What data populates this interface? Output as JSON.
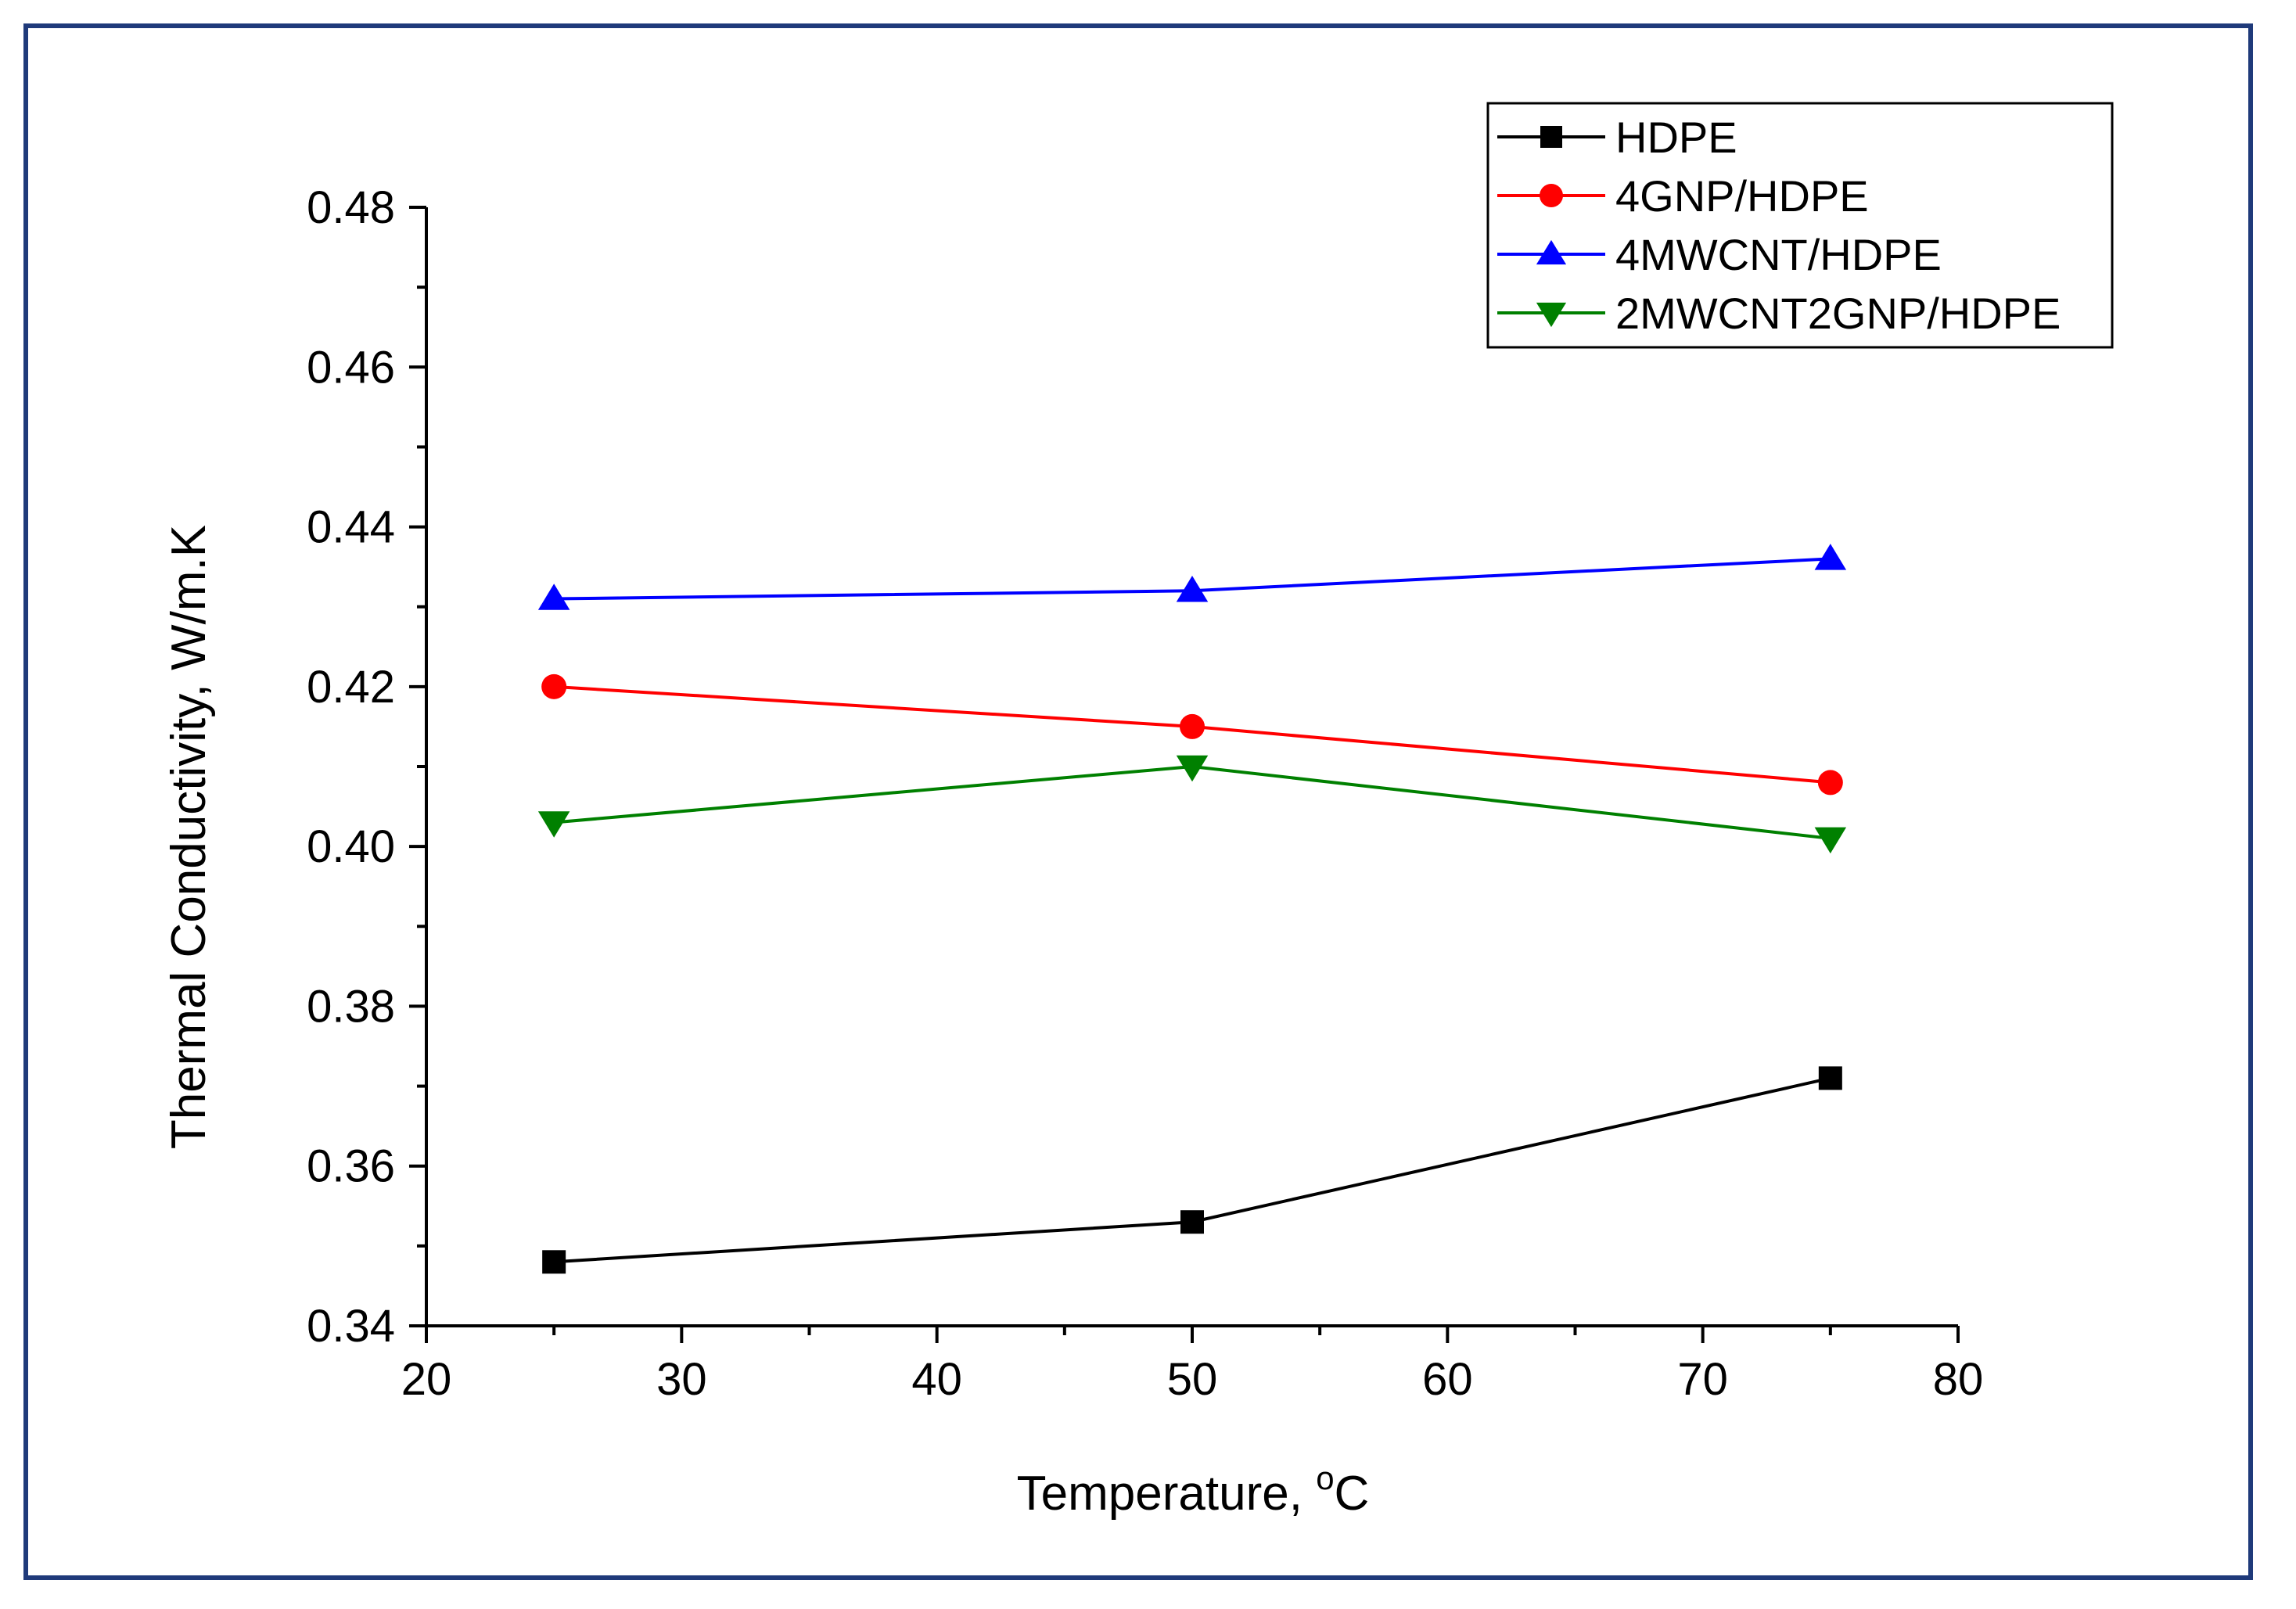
{
  "chart_data": {
    "type": "line",
    "xlabel": "Temperature, ",
    "xlabel_sup": "o",
    "xlabel_suffix": "C",
    "ylabel": "Thermal Conductivity, W/m.K",
    "xlim": [
      20,
      80
    ],
    "ylim": [
      0.34,
      0.48
    ],
    "x_ticks": [
      "20",
      "30",
      "40",
      "50",
      "60",
      "70",
      "80"
    ],
    "y_ticks": [
      "0.34",
      "0.36",
      "0.38",
      "0.40",
      "0.42",
      "0.44",
      "0.46",
      "0.48"
    ],
    "grid": false,
    "legend_position": "top-right",
    "x": [
      25,
      50,
      75
    ],
    "series": [
      {
        "name": "HDPE",
        "values": [
          0.348,
          0.353,
          0.371
        ],
        "color": "#000000",
        "marker": "square"
      },
      {
        "name": "4GNP/HDPE",
        "values": [
          0.42,
          0.415,
          0.408
        ],
        "color": "#ff0000",
        "marker": "circle"
      },
      {
        "name": "4MWCNT/HDPE",
        "values": [
          0.431,
          0.432,
          0.436
        ],
        "color": "#0000ff",
        "marker": "triangle-up"
      },
      {
        "name": "2MWCNT2GNP/HDPE",
        "values": [
          0.403,
          0.41,
          0.401
        ],
        "color": "#008000",
        "marker": "triangle-down"
      }
    ]
  },
  "colors": {
    "frame_border": "#1f3a7a",
    "axis": "#000000"
  }
}
